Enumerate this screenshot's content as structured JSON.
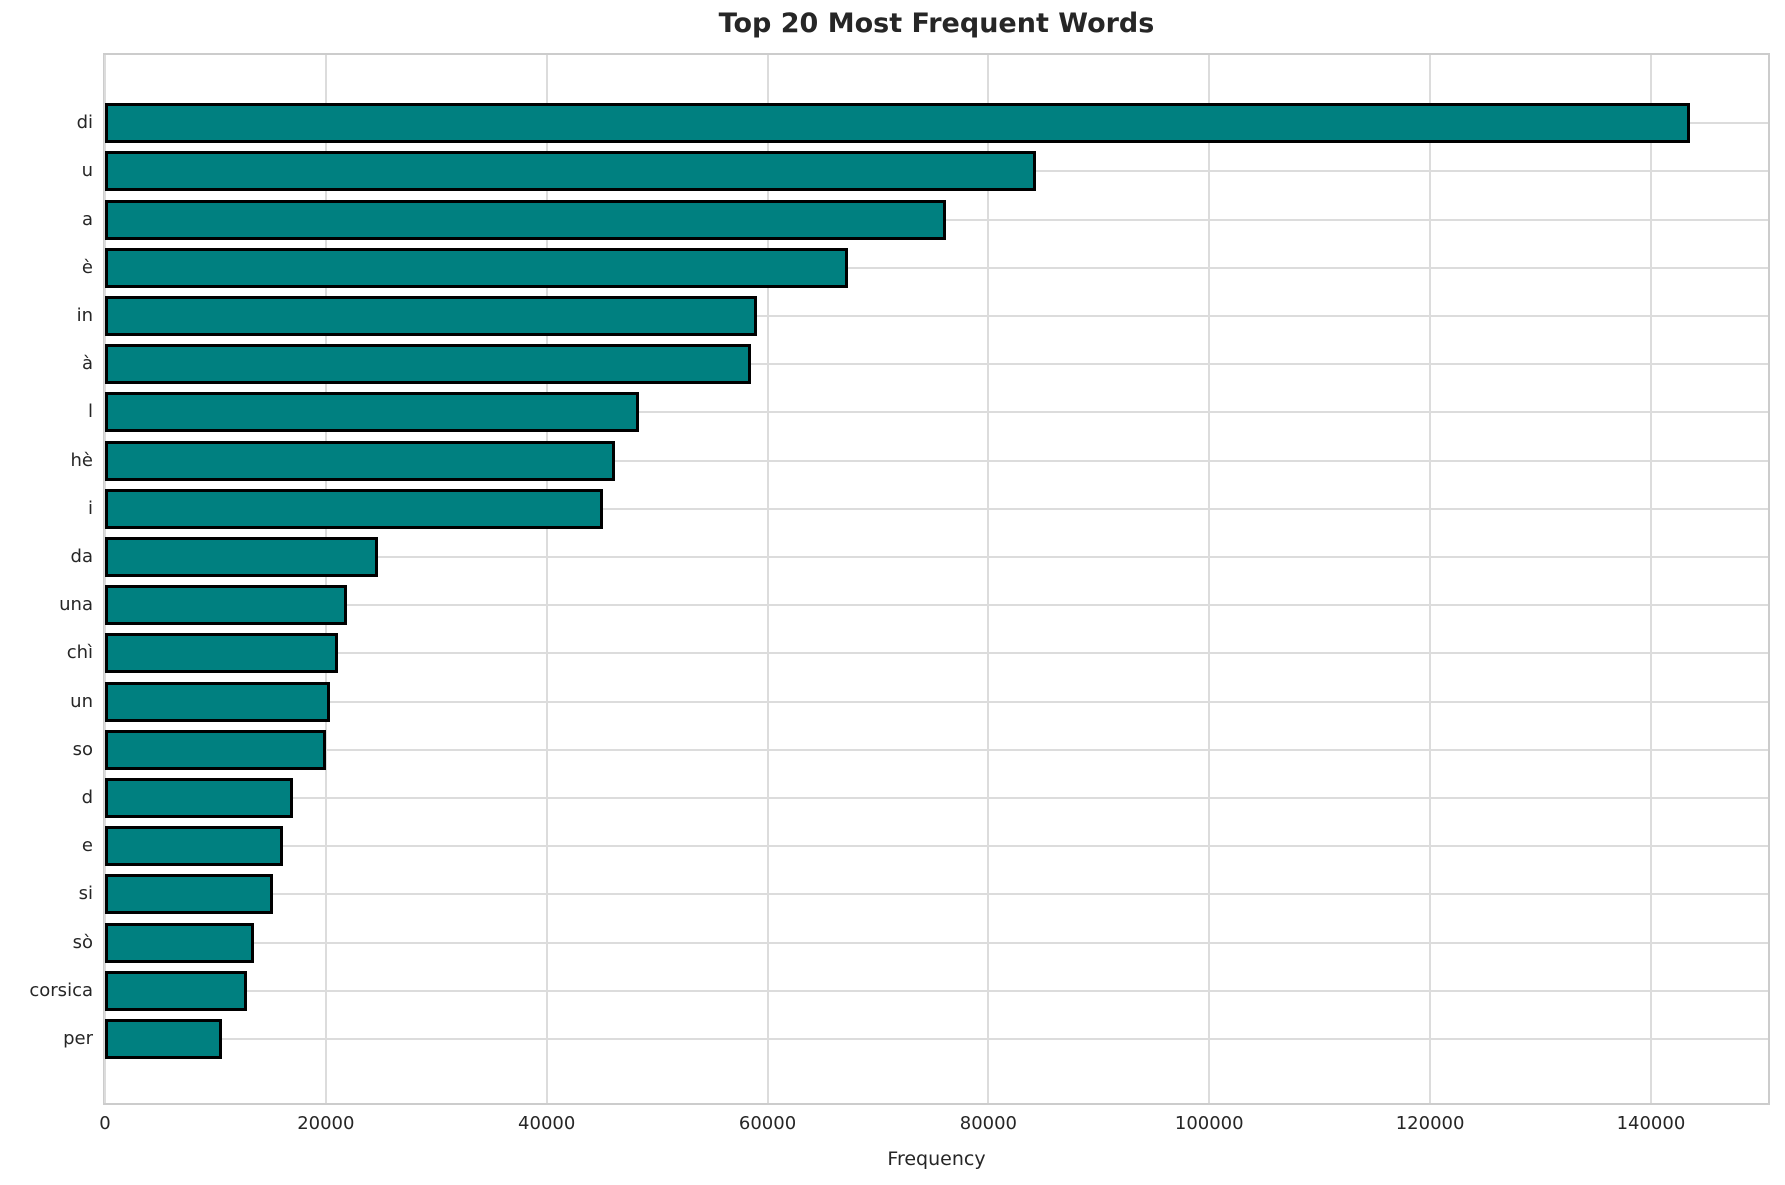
{
  "chart_data": {
    "type": "bar",
    "orientation": "horizontal",
    "title": "Top 20 Most Frequent Words",
    "xlabel": "Frequency",
    "ylabel": "",
    "categories": [
      "di",
      "u",
      "a",
      "è",
      "in",
      "à",
      "l",
      "hè",
      "i",
      "da",
      "una",
      "chì",
      "un",
      "so",
      "d",
      "e",
      "si",
      "sò",
      "corsica",
      "per"
    ],
    "values": [
      143500,
      84300,
      76200,
      67300,
      59000,
      58500,
      48400,
      46200,
      45100,
      24700,
      21900,
      21100,
      20400,
      20000,
      17000,
      16100,
      15200,
      13500,
      12900,
      10600
    ],
    "xticks": [
      0,
      20000,
      40000,
      60000,
      80000,
      100000,
      120000,
      140000
    ],
    "xtick_labels": [
      "0",
      "20000",
      "40000",
      "60000",
      "80000",
      "100000",
      "120000",
      "140000"
    ],
    "xlim": [
      0,
      150600
    ],
    "grid": true,
    "legend": false,
    "colors": {
      "bar_fill": "#008080",
      "bar_edge": "#000000",
      "gridline": "#dcdcdc",
      "spine": "#cccccc",
      "text": "#262626",
      "background": "#ffffff"
    }
  }
}
